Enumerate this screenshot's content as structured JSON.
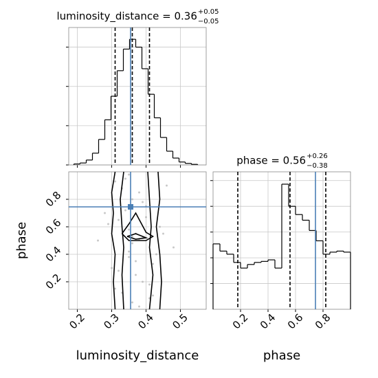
{
  "chart_data": [
    {
      "type": "histogram",
      "title": "luminosity_distance = 0.36",
      "title_sup": "+0.05",
      "title_sub": "−0.05",
      "bins": [
        0.19,
        0.208,
        0.226,
        0.244,
        0.262,
        0.28,
        0.298,
        0.316,
        0.334,
        0.352,
        0.37,
        0.388,
        0.406,
        0.424,
        0.442,
        0.46,
        0.478,
        0.496,
        0.514,
        0.532,
        0.55
      ],
      "values": [
        0.05,
        0.1,
        0.25,
        0.6,
        1.3,
        2.3,
        3.5,
        4.8,
        5.9,
        6.4,
        6.0,
        4.9,
        3.6,
        2.4,
        1.4,
        0.7,
        0.35,
        0.15,
        0.08,
        0.03
      ],
      "color": "#000000",
      "xlim": [
        0.175,
        0.575
      ],
      "xticks": [
        0.2,
        0.3,
        0.4,
        0.5
      ],
      "ylim": [
        0,
        7
      ],
      "yticks": [
        0,
        2,
        4,
        6
      ],
      "quantiles": [
        0.31,
        0.36,
        0.41
      ],
      "truth": 0.355,
      "truth_color": "#4a7fb5",
      "grid": true
    },
    {
      "type": "scatter2d",
      "xlabel": "luminosity_distance",
      "ylabel": "phase",
      "xlim": [
        0.175,
        0.575
      ],
      "ylim": [
        0,
        1
      ],
      "xticks": [
        0.2,
        0.3,
        0.4,
        0.5
      ],
      "yticks": [
        0.2,
        0.4,
        0.6,
        0.8
      ],
      "x": [
        0.36,
        0.33,
        0.39,
        0.41,
        0.3,
        0.35,
        0.37,
        0.44,
        0.28,
        0.38,
        0.34,
        0.42,
        0.36,
        0.32,
        0.4,
        0.46,
        0.31,
        0.37,
        0.35,
        0.39,
        0.26,
        0.43,
        0.36,
        0.33,
        0.38,
        0.41,
        0.29,
        0.35,
        0.48,
        0.37,
        0.34,
        0.4,
        0.32,
        0.45,
        0.36,
        0.38,
        0.31,
        0.42,
        0.35,
        0.39
      ],
      "y": [
        0.05,
        0.12,
        0.2,
        0.08,
        0.3,
        0.42,
        0.55,
        0.6,
        0.7,
        0.85,
        0.95,
        0.33,
        0.48,
        0.65,
        0.75,
        0.9,
        0.15,
        0.25,
        0.58,
        0.52,
        0.5,
        0.4,
        0.8,
        0.88,
        0.02,
        0.18,
        0.62,
        0.98,
        0.45,
        0.35,
        0.72,
        0.67,
        0.28,
        0.55,
        0.53,
        0.51,
        0.93,
        0.1,
        0.38,
        0.78
      ],
      "point_color": "#b0b0b0",
      "contours": [
        [
          [
            0.31,
            1
          ],
          [
            0.3,
            0.85
          ],
          [
            0.305,
            0.7
          ],
          [
            0.3,
            0.55
          ],
          [
            0.31,
            0.4
          ],
          [
            0.305,
            0.2
          ],
          [
            0.31,
            0
          ]
        ],
        [
          [
            0.435,
            1
          ],
          [
            0.44,
            0.8
          ],
          [
            0.43,
            0.6
          ],
          [
            0.44,
            0.4
          ],
          [
            0.445,
            0.2
          ],
          [
            0.44,
            0
          ]
        ],
        [
          [
            0.335,
            1
          ],
          [
            0.325,
            0.8
          ],
          [
            0.33,
            0.6
          ],
          [
            0.335,
            0.45
          ],
          [
            0.33,
            0.25
          ],
          [
            0.335,
            0
          ]
        ],
        [
          [
            0.405,
            1
          ],
          [
            0.41,
            0.8
          ],
          [
            0.415,
            0.6
          ],
          [
            0.41,
            0.45
          ],
          [
            0.42,
            0.25
          ],
          [
            0.41,
            0
          ]
        ],
        [
          [
            0.33,
            0.55
          ],
          [
            0.35,
            0.5
          ],
          [
            0.4,
            0.5
          ],
          [
            0.42,
            0.53
          ],
          [
            0.4,
            0.56
          ],
          [
            0.37,
            0.7
          ],
          [
            0.35,
            0.62
          ],
          [
            0.33,
            0.55
          ]
        ],
        [
          [
            0.345,
            0.53
          ],
          [
            0.37,
            0.51
          ],
          [
            0.4,
            0.52
          ],
          [
            0.37,
            0.55
          ],
          [
            0.345,
            0.53
          ]
        ]
      ],
      "truth": [
        0.355,
        0.745
      ],
      "truth_color": "#4a7fb5",
      "grid": true
    },
    {
      "type": "histogram",
      "title": "phase = 0.56",
      "title_sup": "+0.26",
      "title_sub": "−0.38",
      "xlabel": "phase",
      "bins": [
        0,
        0.05,
        0.1,
        0.15,
        0.2,
        0.25,
        0.3,
        0.35,
        0.4,
        0.45,
        0.5,
        0.55,
        0.6,
        0.65,
        0.7,
        0.75,
        0.8,
        0.85,
        0.9,
        0.95,
        1
      ],
      "values": [
        1.27,
        1.13,
        1.07,
        0.91,
        0.8,
        0.87,
        0.91,
        0.93,
        0.96,
        0.8,
        2.43,
        2.0,
        1.84,
        1.73,
        1.53,
        1.33,
        1.07,
        1.11,
        1.13,
        1.11
      ],
      "color": "#000000",
      "xlim": [
        0,
        1
      ],
      "xticks": [
        0.2,
        0.4,
        0.6,
        0.8
      ],
      "ylim": [
        0,
        2.67
      ],
      "yticks": [
        0.5,
        1,
        1.5,
        2,
        2.5
      ],
      "quantiles": [
        0.18,
        0.56,
        0.82
      ],
      "truth": 0.745,
      "truth_color": "#4a7fb5",
      "grid": true
    }
  ]
}
